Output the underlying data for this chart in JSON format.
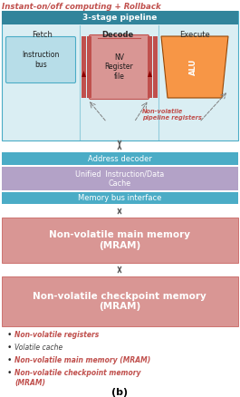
{
  "title": "Instant-on/off computing + Rollba",
  "title_full": "Instant-on/off computing + Rollback",
  "label_b": "(b)",
  "bg_color": "#ffffff",
  "pipeline_bg": "#daeef3",
  "pipeline_header_color": "#31849b",
  "pipeline_header_text": "3-stage pipeline",
  "stage_labels": [
    "Fetch",
    "Decode",
    "Execute"
  ],
  "instruction_bus_color": "#92cddc",
  "instruction_bus_text": "Instruction\nbus",
  "nv_register_text": "NV\nRegister\nfile",
  "alu_text": "ALU",
  "nv_pipeline_text": "Non-volatile\npipeline registers",
  "addr_decoder_text": "Address decoder",
  "cache_text": "Unified  Instruction/Data\nCache",
  "mem_bus_text": "Memory bus interface",
  "mram_main_text": "Non-volatile main memory\n(MRAM)",
  "mram_checkpoint_text": "Non-volatile checkpoint memory\n(MRAM)",
  "bullet_items": [
    [
      "#c0504d",
      "bold",
      "Non-volatile registers"
    ],
    [
      "#404040",
      "normal",
      "Volatile cache"
    ],
    [
      "#c0504d",
      "bold",
      "Non-volatile main memory (MRAM)"
    ],
    [
      "#c0504d",
      "bold",
      "Non-volatile checkpoint memory\n(MRAM)"
    ]
  ],
  "colors": {
    "teal_header": "#31849b",
    "teal_bar": "#4bacc6",
    "light_blue_bg": "#daeef3",
    "light_blue_box": "#b7dde8",
    "nv_reg_fill": "#d99694",
    "nv_reg_border": "#c0504d",
    "alu_fill": "#f79646",
    "alu_border": "#974706",
    "pipeline_reg": "#c0504d",
    "addr_teal": "#4bacc6",
    "cache_purple": "#b3a2c7",
    "mram_fill": "#d99694",
    "mram_border": "#c0504d",
    "arrow_color": "#595959",
    "dashed_arrow": "#7f7f7f"
  }
}
